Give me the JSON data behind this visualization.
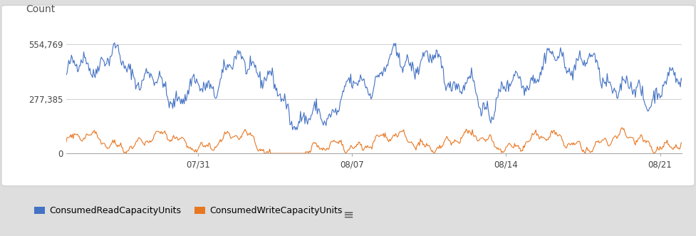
{
  "title": "",
  "count_label": "Count",
  "ylim": [
    0,
    600000
  ],
  "yticks": [
    0,
    277385,
    554769
  ],
  "ytick_labels": [
    "0",
    "277,385",
    "554,769"
  ],
  "xtick_labels": [
    "07/31",
    "08/07",
    "08/14",
    "08/21"
  ],
  "blue_color": "#4472C4",
  "orange_color": "#E87722",
  "background_color": "#ffffff",
  "outer_background": "#dedede",
  "legend_labels": [
    "ConsumedReadCapacityUnits",
    "ConsumedWriteCapacityUnits"
  ],
  "figsize": [
    9.77,
    3.31
  ],
  "dpi": 100,
  "n_points": 700
}
